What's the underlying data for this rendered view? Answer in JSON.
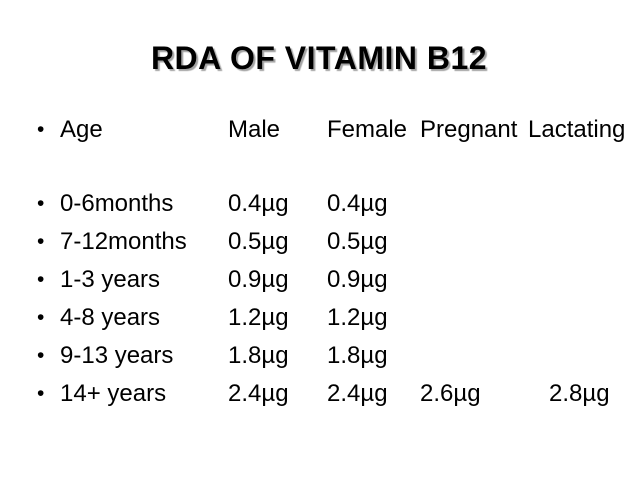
{
  "slide": {
    "title": "RDA OF VITAMIN B12"
  },
  "table": {
    "bullet": "•",
    "header": {
      "age": "Age",
      "male": "Male",
      "female": "Female",
      "pregnant": "Pregnant",
      "lactating": "Lactating"
    },
    "rows": [
      {
        "age": "0-6months",
        "male": "0.4µg",
        "female": "0.4µg",
        "pregnant": "",
        "lactating": ""
      },
      {
        "age": "7-12months",
        "male": "0.5µg",
        "female": "0.5µg",
        "pregnant": "",
        "lactating": ""
      },
      {
        "age": "1-3 years",
        "male": "0.9µg",
        "female": "0.9µg",
        "pregnant": "",
        "lactating": ""
      },
      {
        "age": "4-8 years",
        "male": "1.2µg",
        "female": "1.2µg",
        "pregnant": "",
        "lactating": ""
      },
      {
        "age": "9-13 years",
        "male": "1.8µg",
        "female": "1.8µg",
        "pregnant": "",
        "lactating": ""
      },
      {
        "age": "14+ years",
        "male": "2.4µg",
        "female": "2.4µg",
        "pregnant": "2.6µg",
        "lactating": "2.8µg"
      }
    ]
  },
  "colors": {
    "background": "#ffffff",
    "text": "#000000",
    "title_shadow": "#a3a3a3"
  }
}
